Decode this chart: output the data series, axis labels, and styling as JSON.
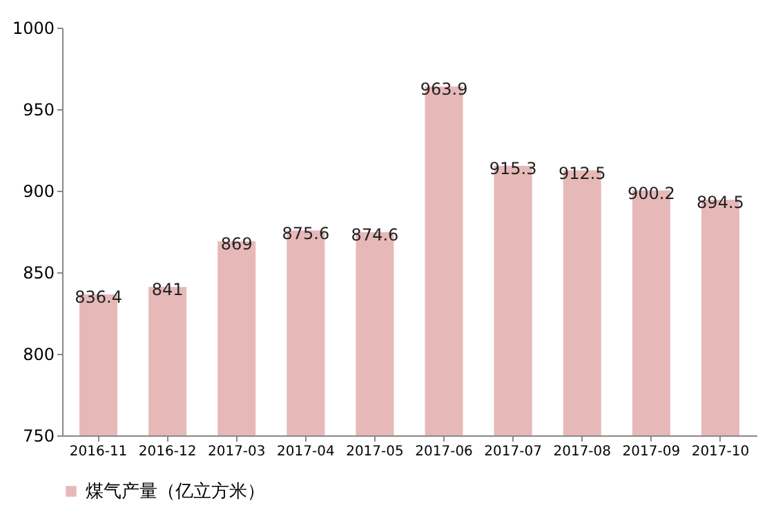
{
  "chart_data": {
    "type": "bar",
    "categories": [
      "2016-11",
      "2016-12",
      "2017-03",
      "2017-04",
      "2017-05",
      "2017-06",
      "2017-07",
      "2017-08",
      "2017-09",
      "2017-10"
    ],
    "series": [
      {
        "name": "煤气产量（亿立方米）",
        "color": "#e6b9b8",
        "values": [
          836.4,
          841,
          869,
          875.6,
          874.6,
          963.9,
          915.3,
          912.5,
          900.2,
          894.5
        ]
      }
    ],
    "ylim": [
      750,
      1000
    ],
    "yticks": [
      750,
      800,
      850,
      900,
      950,
      1000
    ],
    "grid": false,
    "legend": "bottom left",
    "data_labels": true
  }
}
